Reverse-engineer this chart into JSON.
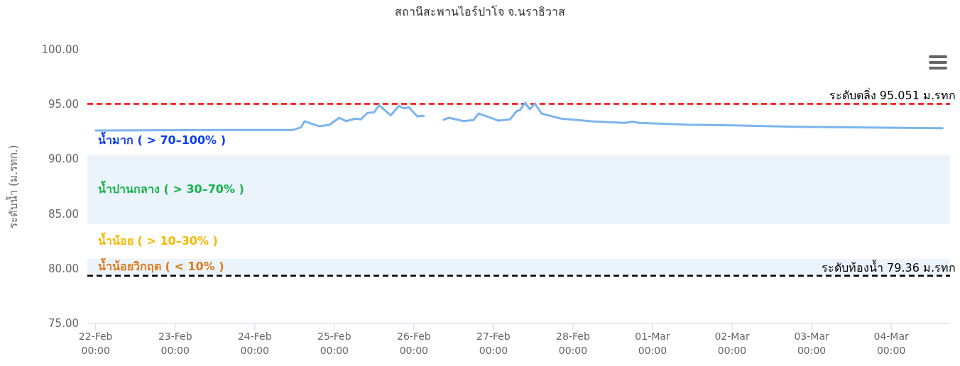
{
  "chart_data": {
    "type": "line",
    "title": "สถานีสะพานไอร์ปาโจ จ.นราธิวาส",
    "ylabel": "ระดับน้ำ (ม.รทก.)",
    "xlim": [
      "--02-21T21:30",
      "--03-04T17:45"
    ],
    "xticks": [
      {
        "value": "--02-22T00:00",
        "label": "22-Feb\n00:00"
      },
      {
        "value": "--02-23T00:00",
        "label": "23-Feb\n00:00"
      },
      {
        "value": "--02-24T00:00",
        "label": "24-Feb\n00:00"
      },
      {
        "value": "--02-25T00:00",
        "label": "25-Feb\n00:00"
      },
      {
        "value": "--02-26T00:00",
        "label": "26-Feb\n00:00"
      },
      {
        "value": "--02-27T00:00",
        "label": "27-Feb\n00:00"
      },
      {
        "value": "--02-28T00:00",
        "label": "28-Feb\n00:00"
      },
      {
        "value": "--03-01T00:00",
        "label": "01-Mar\n00:00"
      },
      {
        "value": "--03-02T00:00",
        "label": "02-Mar\n00:00"
      },
      {
        "value": "--03-03T00:00",
        "label": "03-Mar\n00:00"
      },
      {
        "value": "--03-04T00:00",
        "label": "04-Mar\n00:00"
      }
    ],
    "ylim": [
      75,
      100
    ],
    "yticks": [
      {
        "value": 75,
        "label": "75.00"
      },
      {
        "value": 80,
        "label": "80.00"
      },
      {
        "value": 85,
        "label": "85.00"
      },
      {
        "value": 90,
        "label": "90.00"
      },
      {
        "value": 95,
        "label": "95.00"
      },
      {
        "value": 100,
        "label": "100.00"
      }
    ],
    "grid": false,
    "marker": "none",
    "line_style": "solid",
    "annotations": [
      "น้ำมาก ( > 70–100% )",
      "น้ำน้อย ( > 10–30% )"
    ],
    "bands": [
      {
        "axis": "y",
        "from": 84.07,
        "to": 90.35,
        "label": "น้ำปานกลาง ( > 30–70% )",
        "color": "#ebf3fb"
      },
      {
        "axis": "y",
        "from": 79.36,
        "to": 80.9,
        "label": "น้ำน้อยวิกฤต ( < 10% )",
        "color": "#ebf3fb"
      }
    ],
    "ref_lines": [
      {
        "axis": "y",
        "value": 95.051,
        "label": "ระดับตลิ่ง 95.051 ม.รทก",
        "color": "#ff0000",
        "line_style": "dashed"
      },
      {
        "axis": "y",
        "value": 79.36,
        "label": "ระดับท้องน้ำ 79.36 ม.รทก",
        "color": "#000000",
        "line_style": "dashed"
      }
    ],
    "series": [
      {
        "color": "#7cb5ec",
        "x": [
          "--02-22T00:00",
          "--02-23T15:00",
          "--02-24T11:30",
          "--02-24T14:00",
          "--02-24T15:00",
          "--02-24T19:30",
          "--02-24T22:30",
          "--02-25T01:30",
          "--02-25T03:30",
          "--02-25T06:30",
          "--02-25T08:00",
          "--02-25T10:00",
          "--02-25T12:00",
          "--02-25T13:30",
          "--02-25T17:00",
          "--02-25T19:30",
          "--02-25T21:00",
          "--02-25T22:30",
          "--02-26T01:00",
          "--02-26T03:00",
          "--02-26T06:00",
          "--02-26T09:00",
          "--02-26T10:30",
          "--02-26T15:00",
          "--02-26T18:00",
          "--02-26T19:30",
          "--02-26T22:30",
          "--02-27T01:30",
          "--02-27T05:00",
          "--02-27T07:00",
          "--02-27T08:00",
          "--02-27T09:30",
          "--02-27T11:00",
          "--02-27T12:30",
          "--02-27T14:30",
          "--02-27T16:30",
          "--02-27T20:30",
          "--02-28T05:30",
          "--02-28T15:30",
          "--02-28T18:00",
          "--02-28T20:00",
          "--03-01T10:30",
          "--03-02T00:30",
          "--03-02T19:00",
          "--03-04T15:30"
        ],
        "values": [
          92.62,
          92.66,
          92.66,
          92.92,
          93.46,
          93.0,
          93.13,
          93.78,
          93.48,
          93.7,
          93.63,
          94.22,
          94.28,
          94.93,
          94.0,
          94.86,
          94.64,
          94.73,
          93.91,
          93.96,
          null,
          93.59,
          93.78,
          93.48,
          93.57,
          94.17,
          93.85,
          93.52,
          93.63,
          94.38,
          94.49,
          95.14,
          94.56,
          95.08,
          94.17,
          94.0,
          93.7,
          93.46,
          93.31,
          93.42,
          93.31,
          93.15,
          93.09,
          92.96,
          92.83
        ]
      }
    ]
  }
}
